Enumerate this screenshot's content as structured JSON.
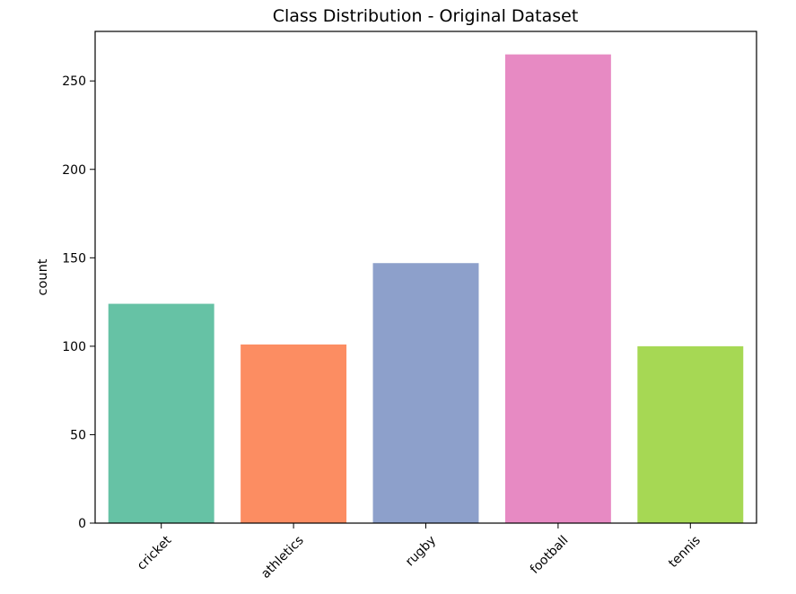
{
  "chart_data": {
    "type": "bar",
    "title": "Class Distribution - Original Dataset",
    "xlabel": "",
    "ylabel": "count",
    "categories": [
      "cricket",
      "athletics",
      "rugby",
      "football",
      "tennis"
    ],
    "values": [
      124,
      101,
      147,
      265,
      100
    ],
    "colors": [
      "#66c2a5",
      "#fc8d62",
      "#8da0cb",
      "#e78ac3",
      "#a6d854"
    ],
    "ylim": [
      0,
      278
    ],
    "yticks": [
      0,
      50,
      100,
      150,
      200,
      250
    ],
    "ytick_labels": [
      "0",
      "50",
      "100",
      "150",
      "200",
      "250"
    ],
    "xtick_rotation": 45,
    "grid": false
  }
}
